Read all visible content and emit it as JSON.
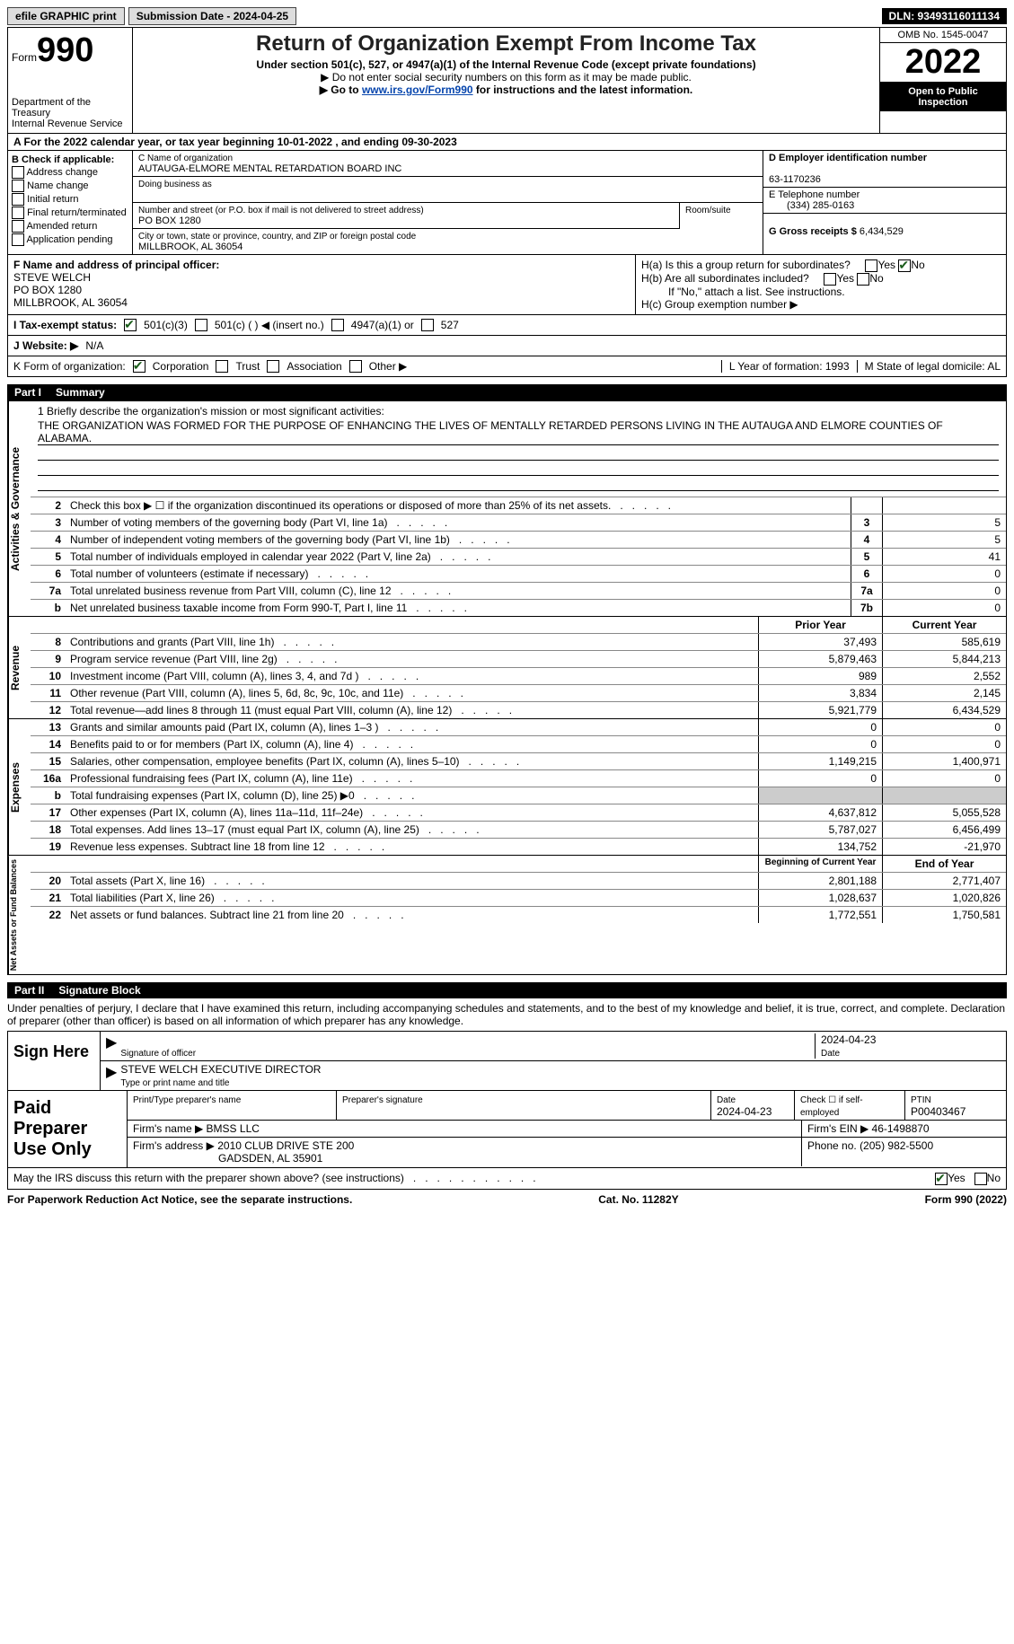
{
  "topbar": {
    "efile": "efile GRAPHIC print",
    "submission": "Submission Date - 2024-04-25",
    "dln": "DLN: 93493116011134"
  },
  "header": {
    "form_label": "Form",
    "form_no": "990",
    "title": "Return of Organization Exempt From Income Tax",
    "sub1": "Under section 501(c), 527, or 4947(a)(1) of the Internal Revenue Code (except private foundations)",
    "sub2": "▶ Do not enter social security numbers on this form as it may be made public.",
    "sub3_pre": "▶ Go to ",
    "sub3_link": "www.irs.gov/Form990",
    "sub3_post": " for instructions and the latest information.",
    "dept": "Department of the Treasury\nInternal Revenue Service",
    "omb": "OMB No. 1545-0047",
    "year": "2022",
    "inspect": "Open to Public Inspection"
  },
  "row_a": "A For the 2022 calendar year, or tax year beginning 10-01-2022    , and ending 09-30-2023",
  "box_b": {
    "label": "B Check if applicable:",
    "opts": [
      "Address change",
      "Name change",
      "Initial return",
      "Final return/terminated",
      "Amended return",
      "Application pending"
    ]
  },
  "box_c": {
    "name_lbl": "C Name of organization",
    "name": "AUTAUGA-ELMORE MENTAL RETARDATION BOARD INC",
    "dba_lbl": "Doing business as",
    "addr_lbl": "Number and street (or P.O. box if mail is not delivered to street address)",
    "addr": "PO BOX 1280",
    "room_lbl": "Room/suite",
    "city_lbl": "City or town, state or province, country, and ZIP or foreign postal code",
    "city": "MILLBROOK, AL  36054"
  },
  "box_d": {
    "ein_lbl": "D Employer identification number",
    "ein": "63-1170236",
    "tel_lbl": "E Telephone number",
    "tel": "(334) 285-0163",
    "gross_lbl": "G Gross receipts $",
    "gross": "6,434,529"
  },
  "box_f": {
    "lbl": "F  Name and address of principal officer:",
    "name": "STEVE WELCH",
    "addr1": "PO BOX 1280",
    "addr2": "MILLBROOK, AL  36054"
  },
  "box_h": {
    "a": "H(a)  Is this a group return for subordinates?",
    "b": "H(b)  Are all subordinates included?",
    "note": "If \"No,\" attach a list. See instructions.",
    "c": "H(c)  Group exemption number ▶"
  },
  "status": {
    "lbl": "I   Tax-exempt status:",
    "o1": "501(c)(3)",
    "o2": "501(c) (  ) ◀ (insert no.)",
    "o3": "4947(a)(1) or",
    "o4": "527"
  },
  "website": {
    "lbl": "J   Website: ▶",
    "val": "N/A"
  },
  "korg": {
    "lbl": "K Form of organization:",
    "opts": [
      "Corporation",
      "Trust",
      "Association",
      "Other ▶"
    ],
    "l": "L Year of formation: 1993",
    "m": "M State of legal domicile: AL"
  },
  "part1": {
    "num": "Part I",
    "title": "Summary"
  },
  "mission": {
    "lbl": "1   Briefly describe the organization's mission or most significant activities:",
    "text": "THE ORGANIZATION WAS FORMED FOR THE PURPOSE OF ENHANCING THE LIVES OF MENTALLY RETARDED PERSONS LIVING IN THE AUTAUGA AND ELMORE COUNTIES OF ALABAMA."
  },
  "lines_gov": [
    {
      "n": "2",
      "d": "Check this box ▶ ☐  if the organization discontinued its operations or disposed of more than 25% of its net assets.",
      "box": "",
      "v": ""
    },
    {
      "n": "3",
      "d": "Number of voting members of the governing body (Part VI, line 1a)",
      "box": "3",
      "v": "5"
    },
    {
      "n": "4",
      "d": "Number of independent voting members of the governing body (Part VI, line 1b)",
      "box": "4",
      "v": "5"
    },
    {
      "n": "5",
      "d": "Total number of individuals employed in calendar year 2022 (Part V, line 2a)",
      "box": "5",
      "v": "41"
    },
    {
      "n": "6",
      "d": "Total number of volunteers (estimate if necessary)",
      "box": "6",
      "v": "0"
    },
    {
      "n": "7a",
      "d": "Total unrelated business revenue from Part VIII, column (C), line 12",
      "box": "7a",
      "v": "0"
    },
    {
      "n": "b",
      "d": "Net unrelated business taxable income from Form 990-T, Part I, line 11",
      "box": "7b",
      "v": "0"
    }
  ],
  "col_hdrs": {
    "prior": "Prior Year",
    "current": "Current Year"
  },
  "lines_rev": [
    {
      "n": "8",
      "d": "Contributions and grants (Part VIII, line 1h)",
      "p": "37,493",
      "c": "585,619"
    },
    {
      "n": "9",
      "d": "Program service revenue (Part VIII, line 2g)",
      "p": "5,879,463",
      "c": "5,844,213"
    },
    {
      "n": "10",
      "d": "Investment income (Part VIII, column (A), lines 3, 4, and 7d )",
      "p": "989",
      "c": "2,552"
    },
    {
      "n": "11",
      "d": "Other revenue (Part VIII, column (A), lines 5, 6d, 8c, 9c, 10c, and 11e)",
      "p": "3,834",
      "c": "2,145"
    },
    {
      "n": "12",
      "d": "Total revenue—add lines 8 through 11 (must equal Part VIII, column (A), line 12)",
      "p": "5,921,779",
      "c": "6,434,529"
    }
  ],
  "lines_exp": [
    {
      "n": "13",
      "d": "Grants and similar amounts paid (Part IX, column (A), lines 1–3 )",
      "p": "0",
      "c": "0"
    },
    {
      "n": "14",
      "d": "Benefits paid to or for members (Part IX, column (A), line 4)",
      "p": "0",
      "c": "0"
    },
    {
      "n": "15",
      "d": "Salaries, other compensation, employee benefits (Part IX, column (A), lines 5–10)",
      "p": "1,149,215",
      "c": "1,400,971"
    },
    {
      "n": "16a",
      "d": "Professional fundraising fees (Part IX, column (A), line 11e)",
      "p": "0",
      "c": "0"
    },
    {
      "n": "b",
      "d": "Total fundraising expenses (Part IX, column (D), line 25) ▶0",
      "p": "",
      "c": "",
      "gray": true
    },
    {
      "n": "17",
      "d": "Other expenses (Part IX, column (A), lines 11a–11d, 11f–24e)",
      "p": "4,637,812",
      "c": "5,055,528"
    },
    {
      "n": "18",
      "d": "Total expenses. Add lines 13–17 (must equal Part IX, column (A), line 25)",
      "p": "5,787,027",
      "c": "6,456,499"
    },
    {
      "n": "19",
      "d": "Revenue less expenses. Subtract line 18 from line 12",
      "p": "134,752",
      "c": "-21,970"
    }
  ],
  "col_hdrs2": {
    "prior": "Beginning of Current Year",
    "current": "End of Year"
  },
  "lines_net": [
    {
      "n": "20",
      "d": "Total assets (Part X, line 16)",
      "p": "2,801,188",
      "c": "2,771,407"
    },
    {
      "n": "21",
      "d": "Total liabilities (Part X, line 26)",
      "p": "1,028,637",
      "c": "1,020,826"
    },
    {
      "n": "22",
      "d": "Net assets or fund balances. Subtract line 21 from line 20",
      "p": "1,772,551",
      "c": "1,750,581"
    }
  ],
  "vlabels": {
    "gov": "Activities & Governance",
    "rev": "Revenue",
    "exp": "Expenses",
    "net": "Net Assets or Fund Balances"
  },
  "part2": {
    "num": "Part II",
    "title": "Signature Block"
  },
  "penalty": "Under penalties of perjury, I declare that I have examined this return, including accompanying schedules and statements, and to the best of my knowledge and belief, it is true, correct, and complete. Declaration of preparer (other than officer) is based on all information of which preparer has any knowledge.",
  "sign": {
    "here": "Sign Here",
    "sig_lbl": "Signature of officer",
    "date": "2024-04-23",
    "date_lbl": "Date",
    "name": "STEVE WELCH  EXECUTIVE DIRECTOR",
    "name_lbl": "Type or print name and title"
  },
  "prep": {
    "title": "Paid Preparer Use Only",
    "print_lbl": "Print/Type preparer's name",
    "prepsig_lbl": "Preparer's signature",
    "date_lbl": "Date",
    "date": "2024-04-23",
    "check_lbl": "Check ☐ if self-employed",
    "ptin_lbl": "PTIN",
    "ptin": "P00403467",
    "firm_lbl": "Firm's name     ▶",
    "firm": "BMSS LLC",
    "ein_lbl": "Firm's EIN ▶",
    "ein": "46-1498870",
    "addr_lbl": "Firm's address ▶",
    "addr1": "2010 CLUB DRIVE STE 200",
    "addr2": "GADSDEN, AL  35901",
    "phone_lbl": "Phone no.",
    "phone": "(205) 982-5500"
  },
  "discuss": "May the IRS discuss this return with the preparer shown above? (see instructions)",
  "footer": {
    "pra": "For Paperwork Reduction Act Notice, see the separate instructions.",
    "cat": "Cat. No. 11282Y",
    "form": "Form 990 (2022)"
  },
  "yesno": {
    "yes": "Yes",
    "no": "No"
  }
}
